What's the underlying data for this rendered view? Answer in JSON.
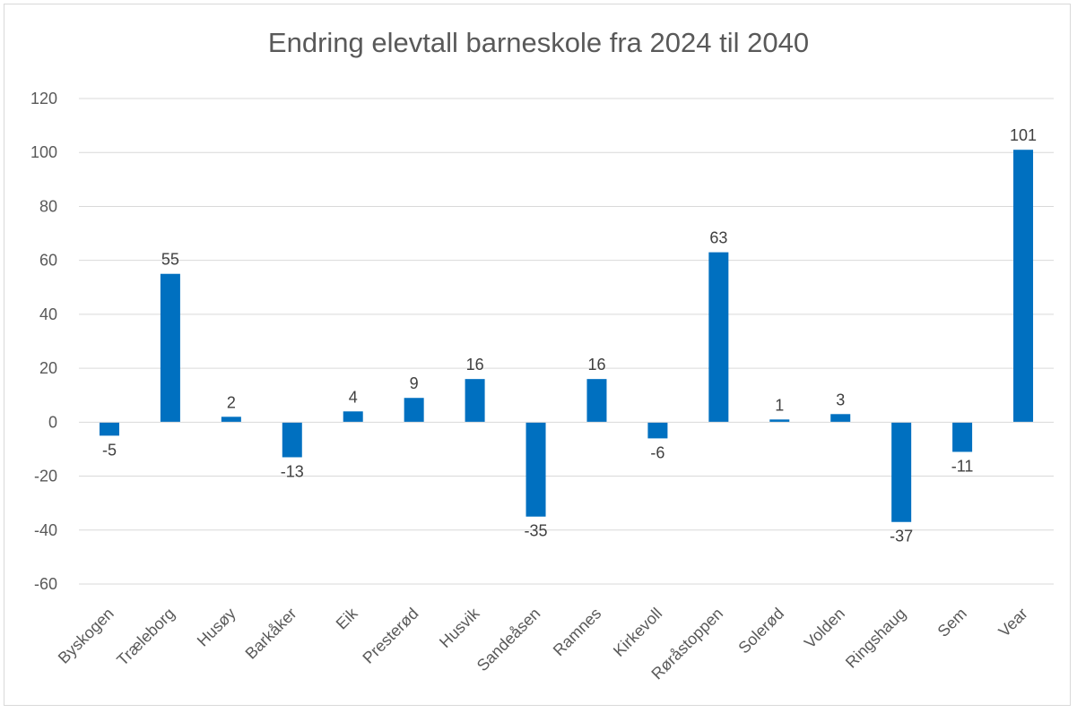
{
  "chart_data": {
    "type": "bar",
    "title": "Endring elevtall barneskole fra 2024 til 2040",
    "categories": [
      "Byskogen",
      "Træleborg",
      "Husøy",
      "Barkåker",
      "Eik",
      "Presterød",
      "Husvik",
      "Sandeåsen",
      "Ramnes",
      "Kirkevoll",
      "Røråstoppen",
      "Solerød",
      "Volden",
      "Ringshaug",
      "Sem",
      "Vear"
    ],
    "series": [
      {
        "values": [
          -5,
          55,
          2,
          -13,
          4,
          9,
          16,
          -35,
          16,
          -6,
          63,
          1,
          3,
          -37,
          -11,
          101
        ]
      }
    ],
    "ylim": [
      -60,
      120
    ],
    "yticks": [
      120,
      100,
      80,
      60,
      40,
      20,
      0,
      -20,
      -40,
      -60
    ],
    "grid": true,
    "legend": "none",
    "bar_color": "#0070c0",
    "data_labels": true
  }
}
